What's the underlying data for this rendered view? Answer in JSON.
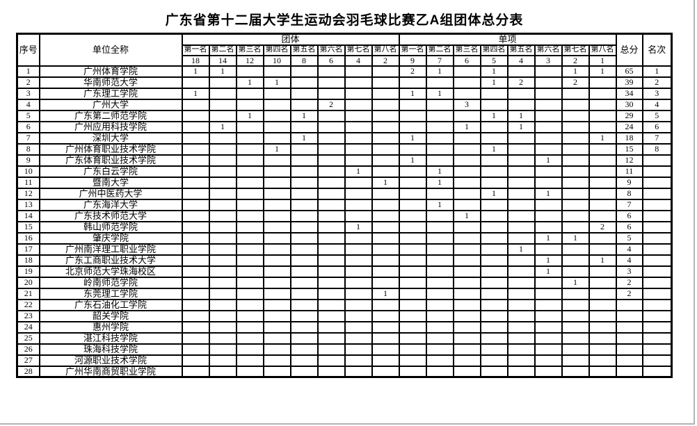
{
  "title": "广东省第十二届大学生运动会羽毛球比赛乙A组团体总分表",
  "page": {
    "background": "#ffffff",
    "edge_color": "#b3b3b3",
    "grid_color": "#000000"
  },
  "table": {
    "corner_headers": {
      "no": "序号",
      "unit": "单位全称",
      "total": "总分",
      "rank": "名次"
    },
    "groups": [
      {
        "label": "团体",
        "places": [
          "第一名",
          "第二名",
          "第三名",
          "第四名",
          "第五名",
          "第六名",
          "第七名",
          "第八名"
        ],
        "points": [
          "18",
          "14",
          "12",
          "10",
          "8",
          "6",
          "4",
          "2"
        ]
      },
      {
        "label": "单项",
        "places": [
          "第一名",
          "第二名",
          "第三名",
          "第四名",
          "第五名",
          "第六名",
          "第七名",
          "第八名"
        ],
        "points": [
          "9",
          "7",
          "6",
          "5",
          "4",
          "3",
          "2",
          "1"
        ]
      }
    ],
    "rows": [
      {
        "no": "1",
        "unit": "广州体育学院",
        "cells": [
          "1",
          "1",
          "",
          "",
          "",
          "",
          "",
          "",
          "2",
          "1",
          "",
          "1",
          "",
          "",
          "1",
          "1"
        ],
        "total": "65",
        "rank": "1"
      },
      {
        "no": "2",
        "unit": "华南师范大学",
        "cells": [
          "",
          "",
          "1",
          "1",
          "",
          "",
          "",
          "",
          "",
          "",
          "",
          "1",
          "2",
          "",
          "2",
          ""
        ],
        "total": "39",
        "rank": "2"
      },
      {
        "no": "3",
        "unit": "广东理工学院",
        "cells": [
          "1",
          "",
          "",
          "",
          "",
          "",
          "",
          "",
          "1",
          "1",
          "",
          "",
          "",
          "",
          "",
          ""
        ],
        "total": "34",
        "rank": "3"
      },
      {
        "no": "4",
        "unit": "广州大学",
        "cells": [
          "",
          "",
          "",
          "",
          "",
          "2",
          "",
          "",
          "",
          "",
          "3",
          "",
          "",
          "",
          "",
          ""
        ],
        "total": "30",
        "rank": "4"
      },
      {
        "no": "5",
        "unit": "广东第二师范学院",
        "cells": [
          "",
          "",
          "1",
          "",
          "1",
          "",
          "",
          "",
          "",
          "",
          "",
          "1",
          "1",
          "",
          "",
          ""
        ],
        "total": "29",
        "rank": "5"
      },
      {
        "no": "6",
        "unit": "广州应用科技学院",
        "cells": [
          "",
          "1",
          "",
          "",
          "",
          "",
          "",
          "",
          "",
          "",
          "1",
          "",
          "1",
          "",
          "",
          ""
        ],
        "total": "24",
        "rank": "6"
      },
      {
        "no": "7",
        "unit": "深圳大学",
        "cells": [
          "",
          "",
          "",
          "",
          "1",
          "",
          "",
          "",
          "1",
          "",
          "",
          "",
          "",
          "",
          "",
          "1"
        ],
        "total": "18",
        "rank": "7"
      },
      {
        "no": "8",
        "unit": "广州体育职业技术学院",
        "cells": [
          "",
          "",
          "",
          "1",
          "",
          "",
          "",
          "",
          "",
          "",
          "",
          "1",
          "",
          "",
          "",
          ""
        ],
        "total": "15",
        "rank": "8"
      },
      {
        "no": "9",
        "unit": "广东体育职业技术学院",
        "cells": [
          "",
          "",
          "",
          "",
          "",
          "",
          "",
          "",
          "1",
          "",
          "",
          "",
          "",
          "1",
          "",
          ""
        ],
        "total": "12",
        "rank": ""
      },
      {
        "no": "10",
        "unit": "广东白云学院",
        "cells": [
          "",
          "",
          "",
          "",
          "",
          "",
          "1",
          "",
          "",
          "1",
          "",
          "",
          "",
          "",
          "",
          ""
        ],
        "total": "11",
        "rank": ""
      },
      {
        "no": "11",
        "unit": "暨南大学",
        "cells": [
          "",
          "",
          "",
          "",
          "",
          "",
          "",
          "1",
          "",
          "1",
          "",
          "",
          "",
          "",
          "",
          ""
        ],
        "total": "9",
        "rank": ""
      },
      {
        "no": "12",
        "unit": "广州中医药大学",
        "cells": [
          "",
          "",
          "",
          "",
          "",
          "",
          "",
          "",
          "",
          "",
          "",
          "1",
          "",
          "1",
          "",
          ""
        ],
        "total": "8",
        "rank": ""
      },
      {
        "no": "13",
        "unit": "广东海洋大学",
        "cells": [
          "",
          "",
          "",
          "",
          "",
          "",
          "",
          "",
          "",
          "1",
          "",
          "",
          "",
          "",
          "",
          ""
        ],
        "total": "7",
        "rank": ""
      },
      {
        "no": "14",
        "unit": "广东技术师范大学",
        "cells": [
          "",
          "",
          "",
          "",
          "",
          "",
          "",
          "",
          "",
          "",
          "1",
          "",
          "",
          "",
          "",
          ""
        ],
        "total": "6",
        "rank": ""
      },
      {
        "no": "15",
        "unit": "韩山师范学院",
        "cells": [
          "",
          "",
          "",
          "",
          "",
          "",
          "1",
          "",
          "",
          "",
          "",
          "",
          "",
          "",
          "",
          "2"
        ],
        "total": "6",
        "rank": ""
      },
      {
        "no": "16",
        "unit": "肇庆学院",
        "cells": [
          "",
          "",
          "",
          "",
          "",
          "",
          "",
          "",
          "",
          "",
          "",
          "",
          "",
          "1",
          "1",
          ""
        ],
        "total": "5",
        "rank": ""
      },
      {
        "no": "17",
        "unit": "广州南洋理工职业学院",
        "cells": [
          "",
          "",
          "",
          "",
          "",
          "",
          "",
          "",
          "",
          "",
          "",
          "",
          "1",
          "",
          "",
          ""
        ],
        "total": "4",
        "rank": ""
      },
      {
        "no": "18",
        "unit": "广东工商职业技术大学",
        "cells": [
          "",
          "",
          "",
          "",
          "",
          "",
          "",
          "",
          "",
          "",
          "",
          "",
          "",
          "1",
          "",
          "1"
        ],
        "total": "4",
        "rank": ""
      },
      {
        "no": "19",
        "unit": "北京师范大学珠海校区",
        "cells": [
          "",
          "",
          "",
          "",
          "",
          "",
          "",
          "",
          "",
          "",
          "",
          "",
          "",
          "1",
          "",
          ""
        ],
        "total": "3",
        "rank": ""
      },
      {
        "no": "20",
        "unit": "岭南师范学院",
        "cells": [
          "",
          "",
          "",
          "",
          "",
          "",
          "",
          "",
          "",
          "",
          "",
          "",
          "",
          "",
          "1",
          ""
        ],
        "total": "2",
        "rank": ""
      },
      {
        "no": "21",
        "unit": "东莞理工学院",
        "cells": [
          "",
          "",
          "",
          "",
          "",
          "",
          "",
          "1",
          "",
          "",
          "",
          "",
          "",
          "",
          "",
          ""
        ],
        "total": "2",
        "rank": ""
      },
      {
        "no": "22",
        "unit": "广东石油化工学院",
        "cells": [
          "",
          "",
          "",
          "",
          "",
          "",
          "",
          "",
          "",
          "",
          "",
          "",
          "",
          "",
          "",
          ""
        ],
        "total": "",
        "rank": ""
      },
      {
        "no": "23",
        "unit": "韶关学院",
        "cells": [
          "",
          "",
          "",
          "",
          "",
          "",
          "",
          "",
          "",
          "",
          "",
          "",
          "",
          "",
          "",
          ""
        ],
        "total": "",
        "rank": ""
      },
      {
        "no": "24",
        "unit": "惠州学院",
        "cells": [
          "",
          "",
          "",
          "",
          "",
          "",
          "",
          "",
          "",
          "",
          "",
          "",
          "",
          "",
          "",
          ""
        ],
        "total": "",
        "rank": ""
      },
      {
        "no": "25",
        "unit": "湛江科技学院",
        "cells": [
          "",
          "",
          "",
          "",
          "",
          "",
          "",
          "",
          "",
          "",
          "",
          "",
          "",
          "",
          "",
          ""
        ],
        "total": "",
        "rank": ""
      },
      {
        "no": "26",
        "unit": "珠海科技学院",
        "cells": [
          "",
          "",
          "",
          "",
          "",
          "",
          "",
          "",
          "",
          "",
          "",
          "",
          "",
          "",
          "",
          ""
        ],
        "total": "",
        "rank": ""
      },
      {
        "no": "27",
        "unit": "河源职业技术学院",
        "cells": [
          "",
          "",
          "",
          "",
          "",
          "",
          "",
          "",
          "",
          "",
          "",
          "",
          "",
          "",
          "",
          ""
        ],
        "total": "",
        "rank": ""
      },
      {
        "no": "28",
        "unit": "广州华南商贸职业学院",
        "cells": [
          "",
          "",
          "",
          "",
          "",
          "",
          "",
          "",
          "",
          "",
          "",
          "",
          "",
          "",
          "",
          ""
        ],
        "total": "",
        "rank": ""
      }
    ]
  }
}
